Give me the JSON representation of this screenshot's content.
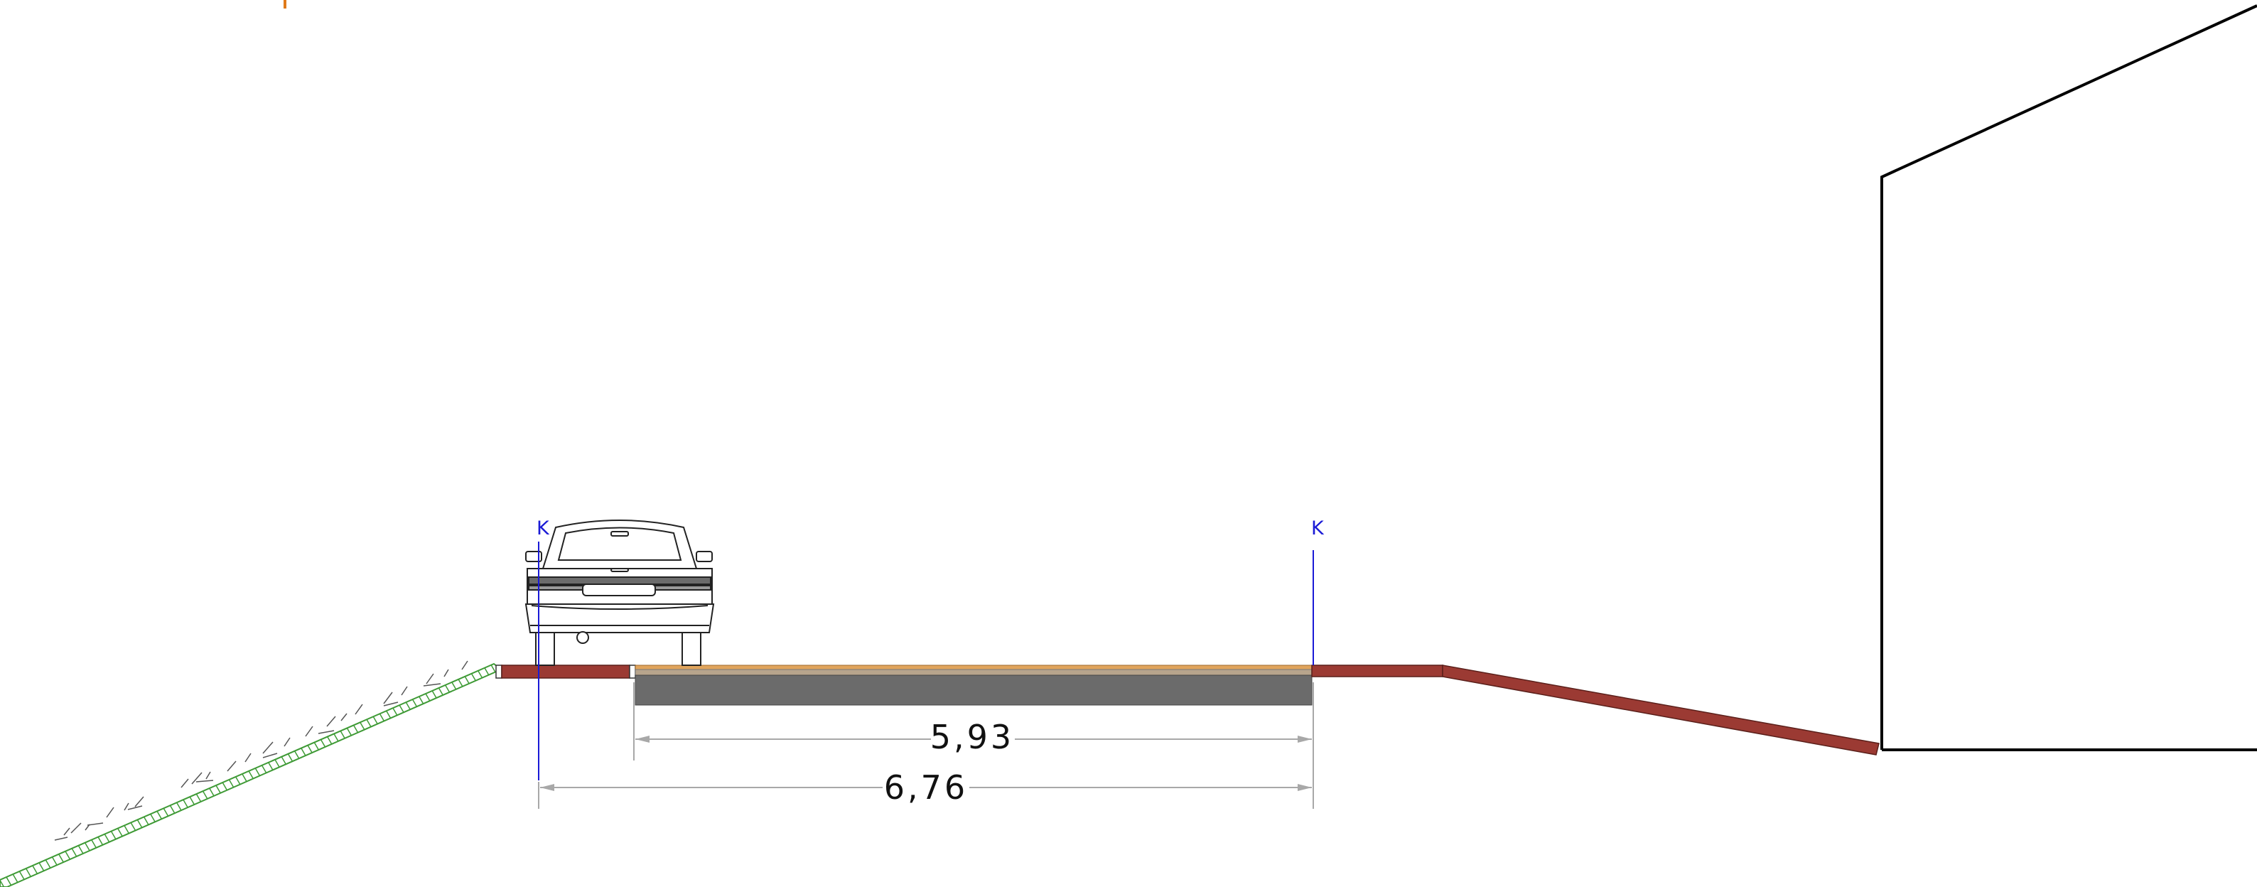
{
  "markers": {
    "left_label": "K",
    "right_label": "K"
  },
  "dimensions": {
    "carriageway_width": "5,93",
    "total_width": "6,76"
  },
  "colors": {
    "marker_line": "#1a1ad6",
    "curb_fill": "#9b3a33",
    "asphalt_base": "#6b6b6b",
    "surface_layer": "#e0a45c",
    "embankment_grass": "#3e9a35",
    "dimension_line": "#a8a8a8",
    "building_outline": "#000000",
    "accent_tick": "#e07a1a"
  },
  "icons": {
    "vehicle": "car-rear-view-icon",
    "grass": "grass-slope-icon"
  }
}
